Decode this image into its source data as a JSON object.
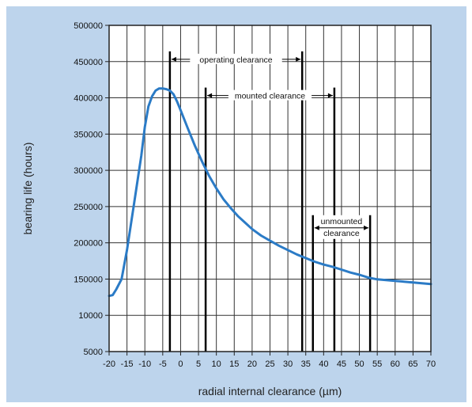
{
  "chart_data": {
    "type": "line",
    "title": "",
    "xlabel": "radial internal clearance (µm)",
    "ylabel": "bearing life (hours)",
    "x_ticks": [
      "-20",
      "-15",
      "-10",
      "-5",
      "0",
      "5",
      "10",
      "15",
      "20",
      "25",
      "30",
      "35",
      "40",
      "45",
      "50",
      "55",
      "60",
      "65",
      "70"
    ],
    "y_ticks": [
      "5000",
      "10000",
      "150000",
      "200000",
      "250000",
      "300000",
      "350000",
      "400000",
      "450000",
      "500000"
    ],
    "xlim": [
      -20,
      70
    ],
    "ylim": [
      5000,
      500000
    ],
    "grid": true,
    "colors": {
      "line": "#2b7bc6",
      "background": "#bdd4ec",
      "plot": "#ffffff",
      "grid": "#333333"
    },
    "series": [
      {
        "name": "",
        "x": [
          -20,
          -19,
          -18,
          -16.5,
          -15,
          -13,
          -11,
          -10,
          -9,
          -8,
          -7,
          -6,
          -5,
          -4,
          -3,
          -2,
          -1,
          0,
          2,
          4,
          6,
          8,
          10,
          12,
          14,
          16,
          18,
          20,
          22.5,
          25,
          27.5,
          30,
          32.5,
          35,
          37.5,
          40,
          42.5,
          45,
          47.5,
          50,
          52.5,
          55,
          57.5,
          60,
          62.5,
          65,
          67.5,
          70
        ],
        "y": [
          85000,
          88000,
          110000,
          150000,
          190000,
          255000,
          320000,
          360000,
          388000,
          402000,
          410000,
          413000,
          413000,
          412000,
          410000,
          405000,
          395000,
          383000,
          358000,
          334000,
          312000,
          292000,
          275000,
          260000,
          248000,
          237000,
          228000,
          219000,
          210000,
          203000,
          196000,
          190000,
          184000,
          179000,
          174000,
          170000,
          167000,
          163000,
          159000,
          156000,
          152000,
          149000,
          146000,
          143000,
          140000,
          137000,
          134000,
          131000
        ]
      }
    ],
    "annotations": [
      {
        "label": "operating clearance",
        "x_start": -3,
        "x_end": 34,
        "y": 451000
      },
      {
        "label": "mounted clearance",
        "x_start": 7,
        "x_end": 43,
        "y": 401000
      },
      {
        "label_line1": "unmounted",
        "label_line2": "clearance",
        "x_start": 37,
        "x_end": 53,
        "y": 225000
      }
    ]
  }
}
